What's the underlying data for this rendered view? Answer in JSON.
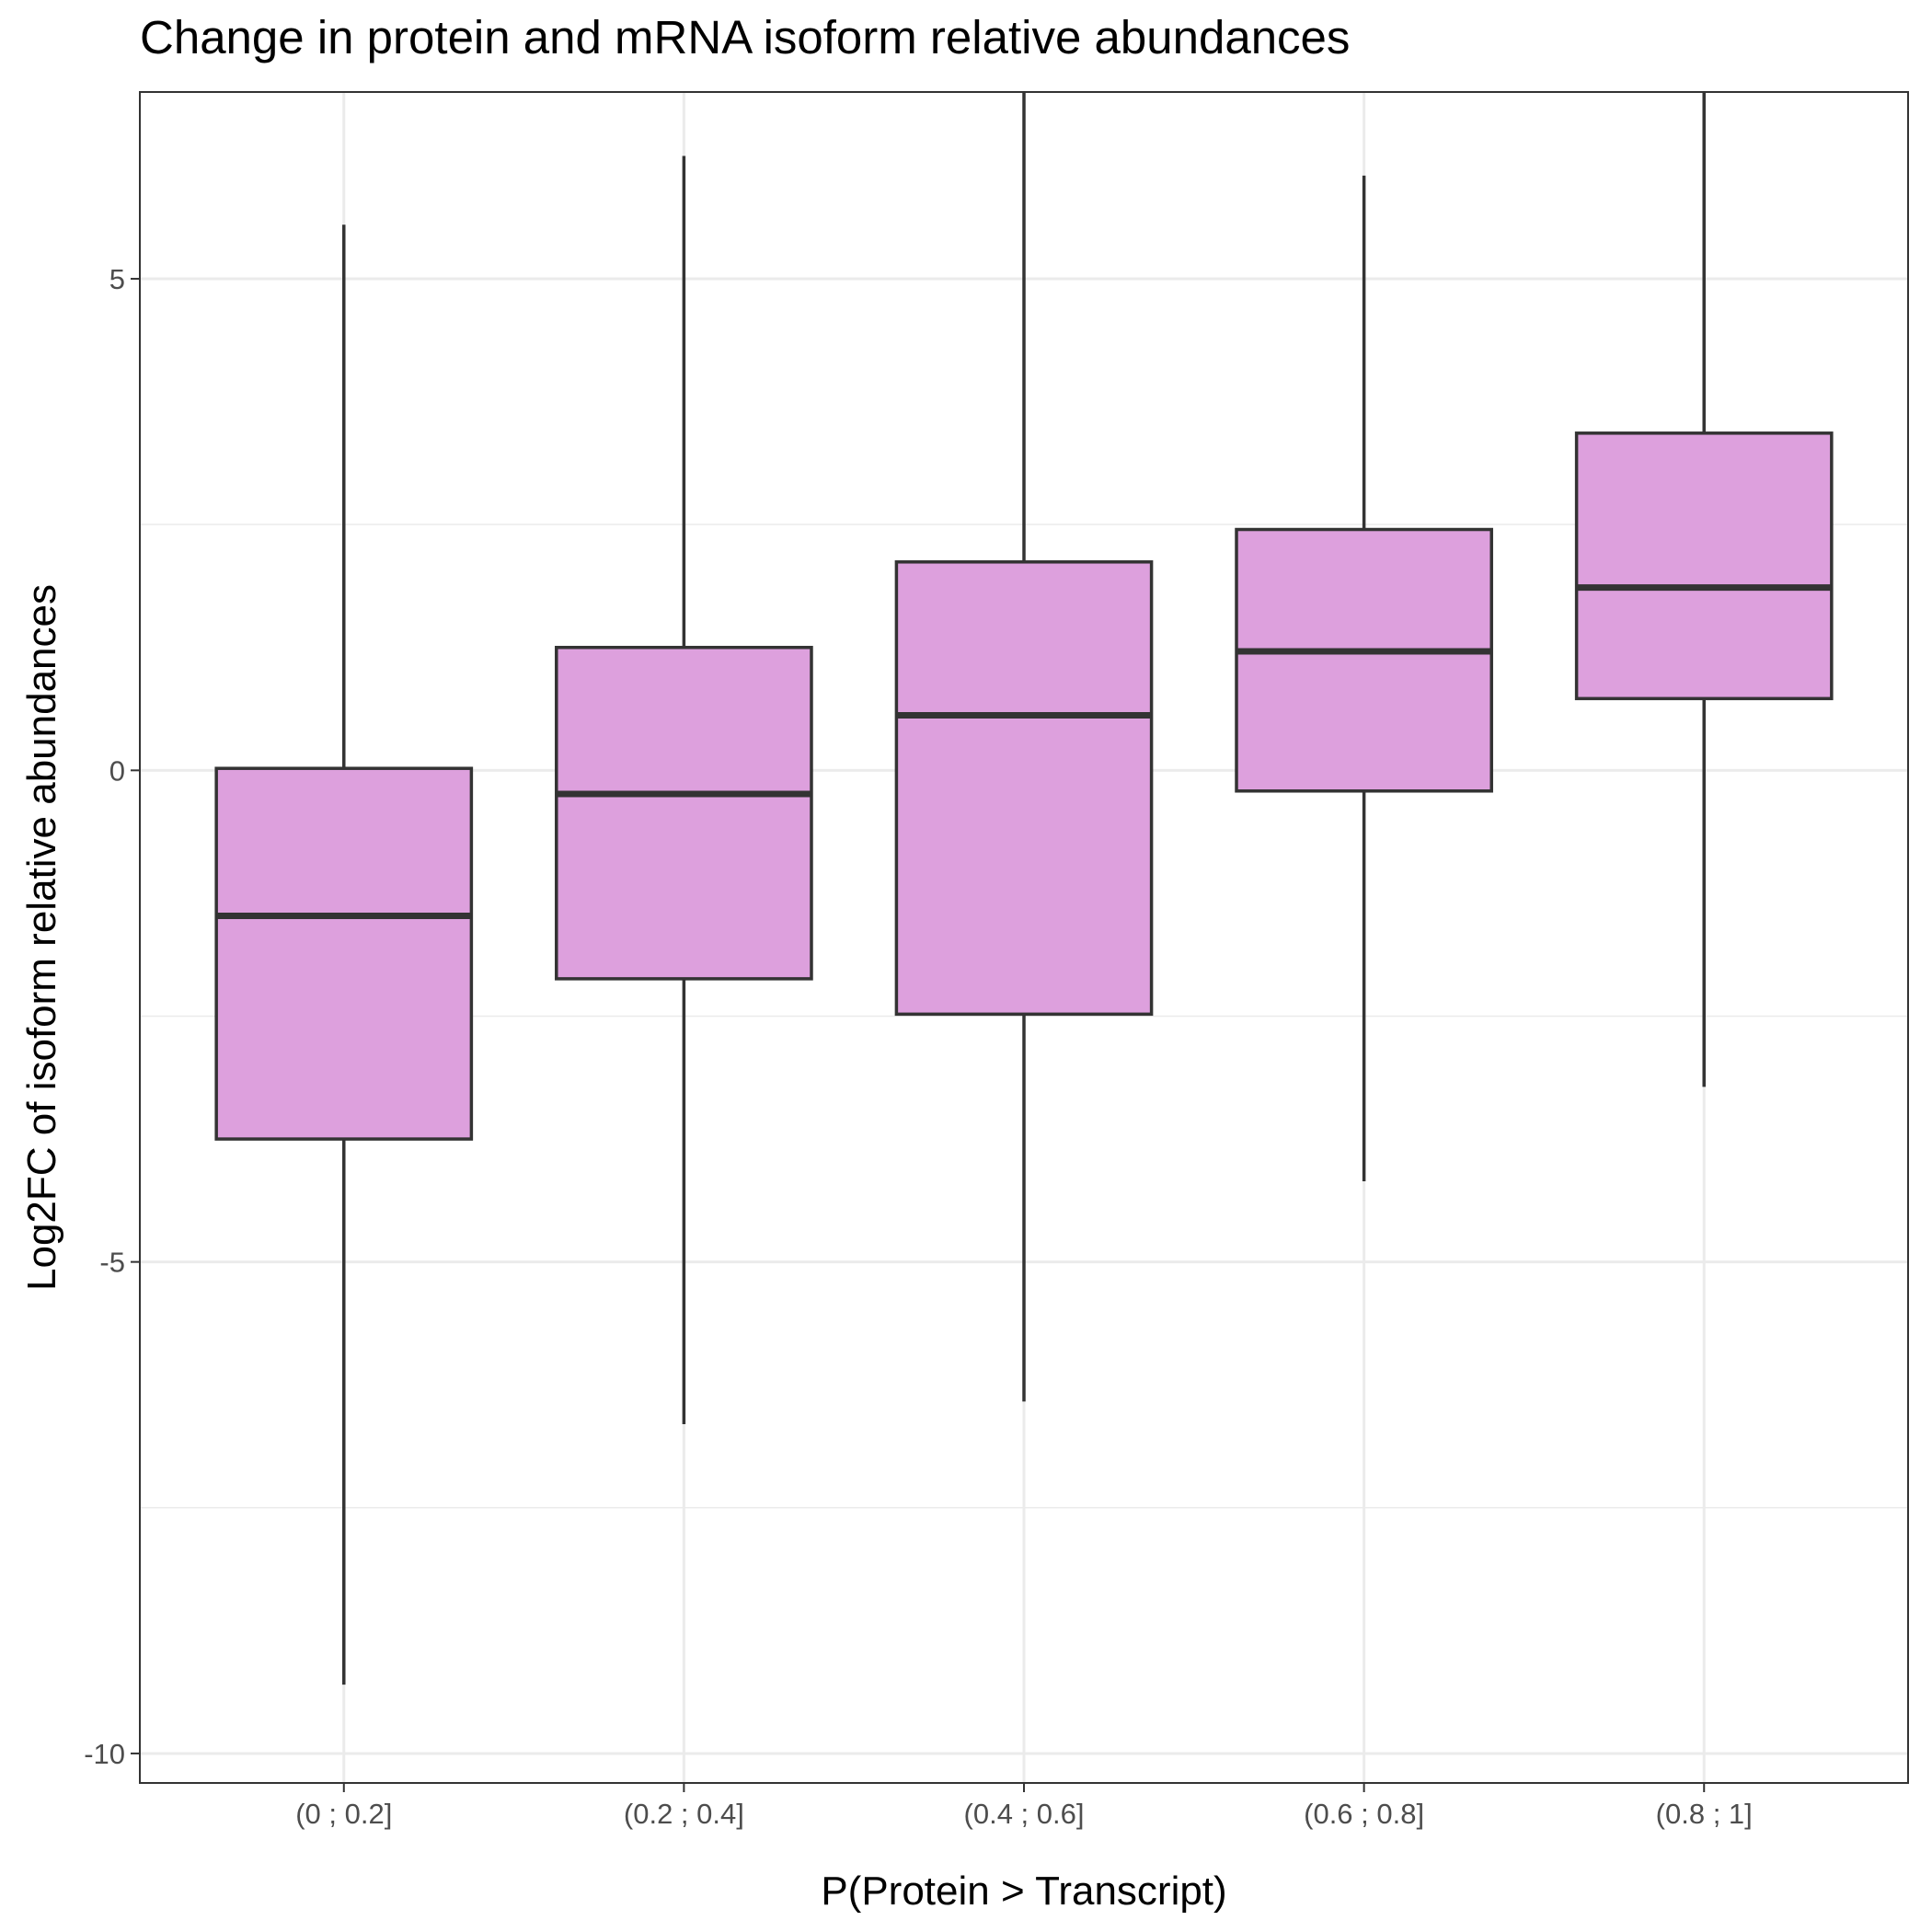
{
  "chart_data": {
    "type": "boxplot",
    "title": "Change in protein and mRNA isoform relative abundances",
    "xlabel": "P(Protein > Transcript)",
    "ylabel": "Log2FC of isoform relative abundances",
    "categories": [
      "(0 ; 0.2]",
      "(0.2 ; 0.4]",
      "(0.4 ; 0.6]",
      "(0.6 ; 0.8]",
      "(0.8 ; 1]"
    ],
    "boxes": [
      {
        "category": "(0 ; 0.2]",
        "whisker_low": -9.3,
        "q1": -3.75,
        "median": -1.48,
        "q3": 0.02,
        "whisker_high": 5.55
      },
      {
        "category": "(0.2 ; 0.4]",
        "whisker_low": -6.65,
        "q1": -2.12,
        "median": -0.24,
        "q3": 1.25,
        "whisker_high": 6.25
      },
      {
        "category": "(0.4 ; 0.6]",
        "whisker_low": -6.42,
        "q1": -2.48,
        "median": 0.56,
        "q3": 2.12,
        "whisker_high": 7.0
      },
      {
        "category": "(0.6 ; 0.8]",
        "whisker_low": -4.18,
        "q1": -0.21,
        "median": 1.21,
        "q3": 2.45,
        "whisker_high": 6.05
      },
      {
        "category": "(0.8 ; 1]",
        "whisker_low": -3.22,
        "q1": 0.73,
        "median": 1.86,
        "q3": 3.43,
        "whisker_high": 7.0
      }
    ],
    "yticks": [
      5,
      0,
      -5,
      -10
    ],
    "yticks_labels": [
      "5",
      "0",
      "-5",
      "-10"
    ],
    "ylim": [
      -10.3,
      6.9
    ],
    "grid": true,
    "legend": "none",
    "colors": {
      "box_fill": "#dda0dd",
      "box_stroke": "#333333",
      "grid": "#ebebeb",
      "panel_border": "#333333"
    }
  }
}
